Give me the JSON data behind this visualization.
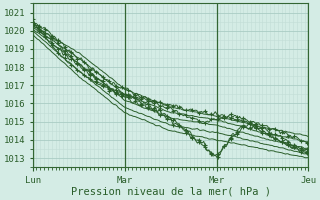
{
  "xlabel": "Pression niveau de la mer( hPa )",
  "bg_color": "#d4ece5",
  "grid_minor_color": "#c2ddd6",
  "grid_major_color": "#aaccc4",
  "line_color": "#2a5e2a",
  "vline_color": "#336633",
  "ylim": [
    1012.5,
    1021.5
  ],
  "yticks": [
    1013,
    1014,
    1015,
    1016,
    1017,
    1018,
    1019,
    1020,
    1021
  ],
  "day_labels": [
    "Lun",
    "Mar",
    "Mer",
    "Jeu"
  ],
  "day_positions": [
    0,
    72,
    144,
    216
  ],
  "num_points": 217,
  "series": [
    {
      "points": [
        [
          0,
          1020.5
        ],
        [
          12,
          1020.0
        ],
        [
          24,
          1019.2
        ],
        [
          36,
          1018.5
        ],
        [
          48,
          1017.8
        ],
        [
          60,
          1017.2
        ],
        [
          72,
          1016.8
        ],
        [
          84,
          1016.4
        ],
        [
          96,
          1016.0
        ],
        [
          108,
          1015.7
        ],
        [
          120,
          1015.3
        ],
        [
          132,
          1015.0
        ],
        [
          144,
          1015.2
        ],
        [
          156,
          1015.3
        ],
        [
          168,
          1015.1
        ],
        [
          180,
          1014.8
        ],
        [
          192,
          1014.5
        ],
        [
          204,
          1014.2
        ],
        [
          216,
          1013.8
        ]
      ],
      "marker": true,
      "noise": 0.08
    },
    {
      "points": [
        [
          0,
          1020.4
        ],
        [
          12,
          1019.8
        ],
        [
          24,
          1019.0
        ],
        [
          36,
          1018.2
        ],
        [
          48,
          1017.5
        ],
        [
          60,
          1016.9
        ],
        [
          72,
          1016.5
        ],
        [
          84,
          1016.1
        ],
        [
          96,
          1015.7
        ],
        [
          108,
          1015.2
        ],
        [
          120,
          1014.6
        ],
        [
          132,
          1013.8
        ],
        [
          144,
          1013.1
        ],
        [
          156,
          1014.2
        ],
        [
          168,
          1015.0
        ],
        [
          180,
          1014.6
        ],
        [
          192,
          1014.2
        ],
        [
          204,
          1013.8
        ],
        [
          216,
          1013.4
        ]
      ],
      "marker": true,
      "noise": 0.1
    },
    {
      "points": [
        [
          0,
          1020.3
        ],
        [
          12,
          1019.6
        ],
        [
          24,
          1018.8
        ],
        [
          36,
          1018.1
        ],
        [
          48,
          1017.4
        ],
        [
          60,
          1016.8
        ],
        [
          72,
          1016.4
        ],
        [
          84,
          1016.0
        ],
        [
          96,
          1015.6
        ],
        [
          108,
          1015.1
        ],
        [
          120,
          1014.5
        ],
        [
          132,
          1013.7
        ],
        [
          144,
          1013.0
        ],
        [
          156,
          1014.1
        ],
        [
          168,
          1014.8
        ],
        [
          180,
          1014.4
        ],
        [
          192,
          1014.0
        ],
        [
          204,
          1013.6
        ],
        [
          216,
          1013.2
        ]
      ],
      "marker": true,
      "noise": 0.1
    },
    {
      "points": [
        [
          0,
          1020.3
        ],
        [
          36,
          1018.8
        ],
        [
          72,
          1016.8
        ],
        [
          108,
          1015.8
        ],
        [
          144,
          1015.3
        ],
        [
          180,
          1014.7
        ],
        [
          216,
          1014.2
        ]
      ],
      "marker": false,
      "noise": 0.02
    },
    {
      "points": [
        [
          0,
          1020.2
        ],
        [
          36,
          1018.5
        ],
        [
          72,
          1016.5
        ],
        [
          108,
          1015.5
        ],
        [
          144,
          1015.1
        ],
        [
          180,
          1014.4
        ],
        [
          216,
          1013.9
        ]
      ],
      "marker": false,
      "noise": 0.02
    },
    {
      "points": [
        [
          0,
          1020.1
        ],
        [
          36,
          1018.2
        ],
        [
          72,
          1016.2
        ],
        [
          108,
          1015.2
        ],
        [
          144,
          1014.8
        ],
        [
          180,
          1014.1
        ],
        [
          216,
          1013.5
        ]
      ],
      "marker": false,
      "noise": 0.02
    },
    {
      "points": [
        [
          0,
          1020.0
        ],
        [
          36,
          1017.8
        ],
        [
          72,
          1015.8
        ],
        [
          108,
          1014.8
        ],
        [
          144,
          1014.4
        ],
        [
          180,
          1013.8
        ],
        [
          216,
          1013.2
        ]
      ],
      "marker": false,
      "noise": 0.02
    },
    {
      "points": [
        [
          0,
          1019.8
        ],
        [
          36,
          1017.5
        ],
        [
          72,
          1015.5
        ],
        [
          108,
          1014.5
        ],
        [
          144,
          1014.0
        ],
        [
          180,
          1013.5
        ],
        [
          216,
          1013.0
        ]
      ],
      "marker": false,
      "noise": 0.02
    },
    {
      "points": [
        [
          0,
          1020.5
        ],
        [
          12,
          1019.5
        ],
        [
          24,
          1018.5
        ],
        [
          36,
          1017.8
        ],
        [
          48,
          1017.2
        ],
        [
          60,
          1016.8
        ],
        [
          72,
          1016.5
        ],
        [
          84,
          1016.3
        ],
        [
          96,
          1016.1
        ],
        [
          108,
          1015.9
        ],
        [
          120,
          1015.7
        ],
        [
          132,
          1015.5
        ],
        [
          144,
          1015.4
        ],
        [
          156,
          1015.2
        ],
        [
          168,
          1015.0
        ],
        [
          180,
          1014.5
        ],
        [
          192,
          1014.0
        ],
        [
          204,
          1013.6
        ],
        [
          216,
          1013.3
        ]
      ],
      "marker": true,
      "noise": 0.06
    }
  ]
}
